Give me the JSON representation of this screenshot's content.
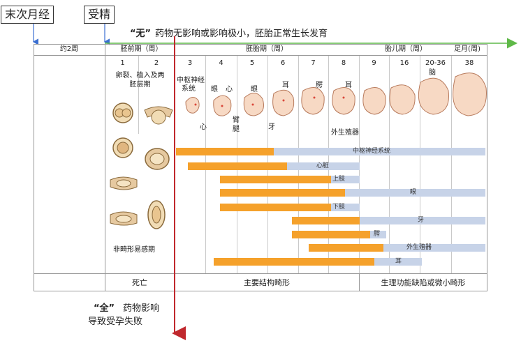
{
  "top_labels": {
    "last_period": "末次月经",
    "fertilization": "受精"
  },
  "header_note": {
    "quote": "“无”",
    "text": "药物无影响或影响极小，胚胎正常生长发育"
  },
  "bottom_note": {
    "quote": "“全”",
    "line1": "药物影响",
    "line2": "导致受孕失败"
  },
  "table": {
    "col0_header": "约2周",
    "stage_pre": "胚前期（周）",
    "stage_embryo": "胚胎期（周）",
    "stage_fetal": "胎儿期（周）",
    "stage_term": "足月(周)",
    "weeks": [
      "1",
      "2",
      "3",
      "4",
      "5",
      "6",
      "7",
      "8",
      "9",
      "16",
      "20-36",
      "38"
    ],
    "pre_note_line1": "卵裂、植入及两",
    "pre_note_line2": "胚层期",
    "annotations": {
      "cns_line1": "中枢神经",
      "cns_line2": "系统",
      "heart_bottom": "心",
      "eye1": "眼",
      "heart2": "心",
      "eye2": "眼",
      "arm": "臂",
      "leg": "腿",
      "ear1": "耳",
      "tooth": "牙",
      "palate": "腭",
      "ear2": "耳",
      "genitals": "外生殖器",
      "brain": "脑"
    },
    "insensitive_label": "非畸形易感期",
    "bars": [
      {
        "label": "中枢神经系统"
      },
      {
        "label": "心脏"
      },
      {
        "label": "上肢"
      },
      {
        "label": "眼"
      },
      {
        "label": "下肢"
      },
      {
        "label": "牙"
      },
      {
        "label": "腭"
      },
      {
        "label": "外生殖器"
      },
      {
        "label": "耳"
      }
    ],
    "footer": {
      "death": "死亡",
      "major": "主要结构畸形",
      "minor": "生理功能缺陷或微小畸形"
    }
  },
  "colors": {
    "orange": "#f5a12b",
    "light_blue": "#c7d3e8",
    "green_arrow": "#5fb948",
    "red_line": "#c0282d",
    "blue_arrow": "#3b6fd1"
  }
}
